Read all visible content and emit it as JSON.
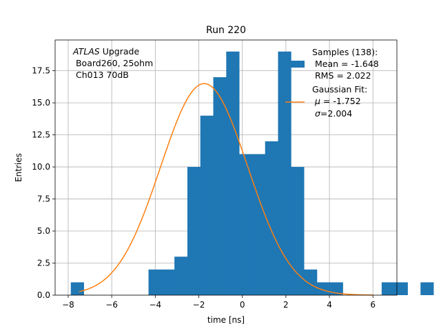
{
  "chart_data": {
    "type": "bar",
    "title": "Run 220",
    "xlabel": "time [ns]",
    "ylabel": "Entries",
    "xlim": [
      -8.6,
      7.1
    ],
    "ylim": [
      0,
      19.9
    ],
    "grid": true,
    "x_ticks": [
      -8,
      -6,
      -4,
      -2,
      0,
      2,
      4,
      6
    ],
    "x_tick_labels": [
      "−8",
      "−6",
      "−4",
      "−2",
      "0",
      "2",
      "4",
      "6"
    ],
    "y_ticks": [
      0,
      2.5,
      5,
      7.5,
      10,
      12.5,
      15,
      17.5
    ],
    "y_tick_labels": [
      "0.0",
      "2.5",
      "5.0",
      "7.5",
      "10.0",
      "12.5",
      "15.0",
      "17.5"
    ],
    "histogram": {
      "name": "Samples",
      "color": "#1f77b4",
      "bin_start": -7.88,
      "bin_width": 0.595,
      "counts": [
        1,
        0,
        0,
        0,
        0,
        0,
        2,
        2,
        3,
        10,
        14,
        17,
        19,
        11,
        11,
        12,
        19,
        10,
        2,
        1,
        1,
        0,
        0,
        0,
        1,
        1,
        0,
        1
      ]
    },
    "fit": {
      "name": "Gaussian Fit",
      "color": "#ff7f0e",
      "mu": -1.752,
      "sigma": 2.004,
      "amplitude": 16.5,
      "x_range": [
        -7.5,
        6.0
      ]
    },
    "annotation": {
      "italic": "ATLAS",
      "line1_rest": " Upgrade",
      "line2": " Board260, 25ohm",
      "line3": " Ch013 70dB"
    },
    "legend": {
      "position": "top-right",
      "samples_line1": "Samples (138):",
      "samples_line2": " Mean = -1.648",
      "samples_line3": " RMS = 2.022",
      "fit_line1": "Gaussian Fit:",
      "fit_mu_prefix": " ",
      "fit_mu_symbol": "μ",
      "fit_mu_value": " = -1.752",
      "fit_sigma_prefix": " ",
      "fit_sigma_symbol": "σ",
      "fit_sigma_value": "=2.004"
    }
  }
}
